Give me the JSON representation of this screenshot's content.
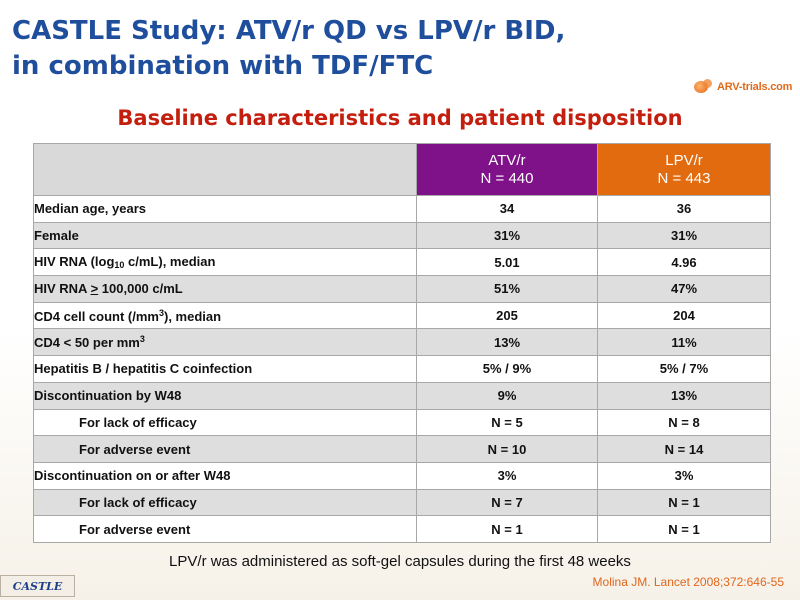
{
  "title": {
    "line1": "CASTLE Study: ATV/r QD vs LPV/r BID,",
    "line2": "in combination with TDF/FTC"
  },
  "logo": {
    "text": "ARV-trials.com"
  },
  "subtitle": "Baseline characteristics and patient disposition",
  "table": {
    "columns": [
      {
        "name": "ATV/r",
        "n": "N = 440",
        "color": "#7f1288"
      },
      {
        "name": "LPV/r",
        "n": "N = 443",
        "color": "#e26b0f"
      }
    ],
    "rows": [
      {
        "label": "Median age, years",
        "atv": "34",
        "lpv": "36"
      },
      {
        "label": "Female",
        "atv": "31%",
        "lpv": "31%"
      },
      {
        "label_pre": "HIV RNA (log",
        "label_sub": "10",
        "label_post": " c/mL), median",
        "atv": "5.01",
        "lpv": "4.96"
      },
      {
        "label_pre": "HIV RNA ",
        "label_u": ">",
        "label_post": " 100,000 c/mL",
        "atv": "51%",
        "lpv": "47%"
      },
      {
        "label_pre": "CD4 cell count (/mm",
        "label_sup": "3",
        "label_post": "), median",
        "atv": "205",
        "lpv": "204"
      },
      {
        "label_pre": "CD4 < 50 per mm",
        "label_sup": "3",
        "atv": "13%",
        "lpv": "11%"
      },
      {
        "label": "Hepatitis B / hepatitis C coinfection",
        "atv": "5% / 9%",
        "lpv": "5% / 7%"
      },
      {
        "label": "Discontinuation by W48",
        "atv": "9%",
        "lpv": "13%"
      },
      {
        "label": "For lack of efficacy",
        "atv": "N = 5",
        "lpv": "N = 8"
      },
      {
        "label": "For adverse event",
        "atv": "N = 10",
        "lpv": "N = 14"
      },
      {
        "label": "Discontinuation on or after W48",
        "atv": "3%",
        "lpv": "3%"
      },
      {
        "label": "For lack of efficacy",
        "atv": "N = 7",
        "lpv": "N = 1"
      },
      {
        "label": "For adverse event",
        "atv": "N = 1",
        "lpv": "N = 1"
      }
    ]
  },
  "footnote": "LPV/r was administered as soft-gel capsules during the first 48 weeks",
  "citation": "Molina JM. Lancet 2008;372:646-55",
  "badge": "CASTLE"
}
